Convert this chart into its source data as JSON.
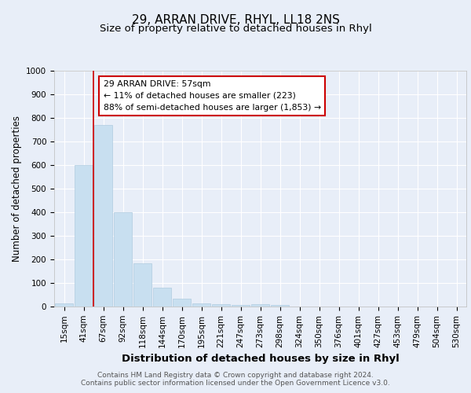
{
  "title1": "29, ARRAN DRIVE, RHYL, LL18 2NS",
  "title2": "Size of property relative to detached houses in Rhyl",
  "xlabel": "Distribution of detached houses by size in Rhyl",
  "ylabel": "Number of detached properties",
  "categories": [
    "15sqm",
    "41sqm",
    "67sqm",
    "92sqm",
    "118sqm",
    "144sqm",
    "170sqm",
    "195sqm",
    "221sqm",
    "247sqm",
    "273sqm",
    "298sqm",
    "324sqm",
    "350sqm",
    "376sqm",
    "401sqm",
    "427sqm",
    "453sqm",
    "479sqm",
    "504sqm",
    "530sqm"
  ],
  "values": [
    15,
    600,
    770,
    400,
    185,
    80,
    35,
    15,
    10,
    7,
    10,
    8,
    0,
    0,
    0,
    0,
    0,
    0,
    0,
    0,
    0
  ],
  "bar_color": "#c8dff0",
  "bar_edge_color": "#b0cce0",
  "vline_color": "#cc0000",
  "annotation_text": "29 ARRAN DRIVE: 57sqm\n← 11% of detached houses are smaller (223)\n88% of semi-detached houses are larger (1,853) →",
  "annotation_box_color": "#ffffff",
  "annotation_box_edge": "#cc0000",
  "ylim": [
    0,
    1000
  ],
  "yticks": [
    0,
    100,
    200,
    300,
    400,
    500,
    600,
    700,
    800,
    900,
    1000
  ],
  "bg_color": "#e8eef8",
  "plot_bg_color": "#e8eef8",
  "grid_color": "#ffffff",
  "footer": "Contains HM Land Registry data © Crown copyright and database right 2024.\nContains public sector information licensed under the Open Government Licence v3.0.",
  "title1_fontsize": 11,
  "title2_fontsize": 9.5,
  "xlabel_fontsize": 9.5,
  "ylabel_fontsize": 8.5,
  "tick_fontsize": 7.5,
  "footer_fontsize": 6.5
}
